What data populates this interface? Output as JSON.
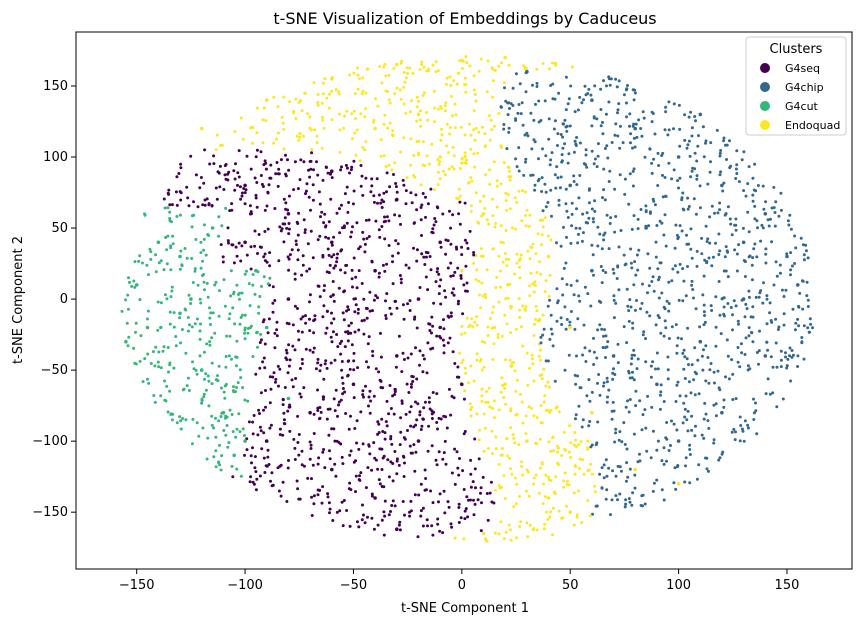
{
  "chart_data": {
    "type": "scatter",
    "title": "t-SNE Visualization of Embeddings by Caduceus",
    "xlabel": "t-SNE Component 1",
    "ylabel": "t-SNE Component 2",
    "xlim": [
      -178,
      180
    ],
    "ylim": [
      -190,
      188
    ],
    "xticks": [
      -150,
      -100,
      -50,
      0,
      50,
      100,
      150
    ],
    "xtick_labels": [
      "−150",
      "−100",
      "−50",
      "0",
      "50",
      "100",
      "150"
    ],
    "yticks": [
      -150,
      -100,
      -50,
      0,
      50,
      100,
      150
    ],
    "ytick_labels": [
      "−150",
      "−100",
      "−50",
      "0",
      "50",
      "100",
      "150"
    ],
    "grid": false,
    "legend": {
      "title": "Clusters",
      "placement": "top-right",
      "entries": [
        "G4seq",
        "G4chip",
        "G4cut",
        "Endoquad"
      ]
    },
    "series": [
      {
        "name": "G4seq",
        "color": "#440154",
        "region": "center-left, x approx -120 to 5, y approx -165 to 110",
        "points": [
          [
            -100,
            80
          ],
          [
            -80,
            60
          ],
          [
            -60,
            40
          ],
          [
            -40,
            20
          ],
          [
            -20,
            0
          ],
          [
            -10,
            -20
          ],
          [
            -30,
            -40
          ],
          [
            -50,
            -60
          ],
          [
            -70,
            -80
          ],
          [
            -90,
            -100
          ],
          [
            -60,
            -120
          ],
          [
            -40,
            -140
          ],
          [
            -30,
            -162
          ],
          [
            -20,
            -100
          ],
          [
            -80,
            0
          ],
          [
            -100,
            40
          ],
          [
            -60,
            90
          ],
          [
            -30,
            70
          ],
          [
            -10,
            40
          ],
          [
            0,
            -60
          ]
        ]
      },
      {
        "name": "G4chip",
        "color": "#31688e",
        "region": "right, x approx 28 to 165, y approx -115 to 165",
        "points": [
          [
            30,
            160
          ],
          [
            60,
            140
          ],
          [
            80,
            120
          ],
          [
            100,
            100
          ],
          [
            120,
            80
          ],
          [
            140,
            60
          ],
          [
            150,
            30
          ],
          [
            130,
            0
          ],
          [
            110,
            -30
          ],
          [
            90,
            -60
          ],
          [
            100,
            -100
          ],
          [
            70,
            -40
          ],
          [
            60,
            20
          ],
          [
            50,
            80
          ],
          [
            130,
            40
          ],
          [
            140,
            -40
          ],
          [
            120,
            -80
          ],
          [
            85,
            50
          ],
          [
            110,
            130
          ],
          [
            155,
            10
          ]
        ]
      },
      {
        "name": "G4cut",
        "color": "#35b779",
        "region": "far left, x approx -160 to -75, y approx -120 to 60",
        "points": [
          [
            -155,
            -30
          ],
          [
            -150,
            10
          ],
          [
            -140,
            40
          ],
          [
            -130,
            -10
          ],
          [
            -120,
            -50
          ],
          [
            -110,
            -80
          ],
          [
            -100,
            -100
          ],
          [
            -95,
            20
          ],
          [
            -90,
            -20
          ],
          [
            -80,
            -70
          ],
          [
            -130,
            30
          ],
          [
            -145,
            -20
          ],
          [
            -115,
            50
          ],
          [
            -105,
            -110
          ],
          [
            -125,
            0
          ]
        ]
      },
      {
        "name": "Endoquad",
        "color": "#fde725",
        "region": "top arc and center band, x approx -130 to 120, y approx -172 to 172",
        "points": [
          [
            -120,
            120
          ],
          [
            -90,
            140
          ],
          [
            -60,
            155
          ],
          [
            -30,
            165
          ],
          [
            0,
            168
          ],
          [
            20,
            170
          ],
          [
            -40,
            120
          ],
          [
            -10,
            100
          ],
          [
            10,
            60
          ],
          [
            0,
            20
          ],
          [
            15,
            -20
          ],
          [
            20,
            -60
          ],
          [
            30,
            -100
          ],
          [
            40,
            -140
          ],
          [
            10,
            -165
          ],
          [
            50,
            -150
          ],
          [
            80,
            -120
          ],
          [
            100,
            -130
          ],
          [
            -20,
            130
          ],
          [
            40,
            30
          ],
          [
            50,
            -20
          ],
          [
            60,
            -80
          ]
        ]
      }
    ]
  }
}
